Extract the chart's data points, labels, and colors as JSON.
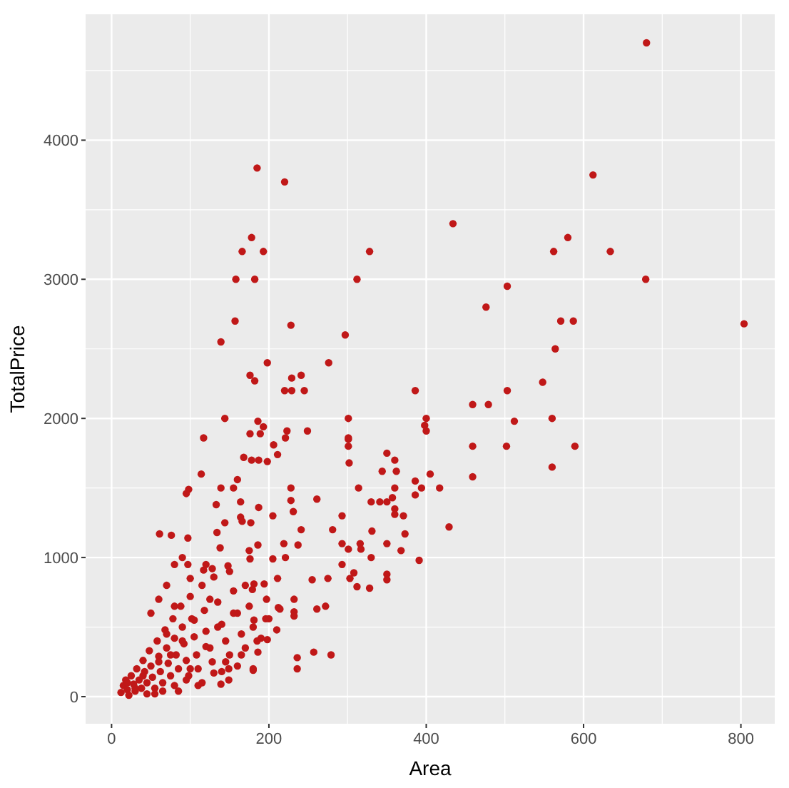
{
  "chart_data": {
    "type": "scatter",
    "xlabel": "Area",
    "ylabel": "TotalPrice",
    "xlim": [
      -33,
      843
    ],
    "ylim": [
      -195,
      4905
    ],
    "xticks": [
      0,
      200,
      400,
      600,
      800
    ],
    "yticks": [
      0,
      1000,
      2000,
      3000,
      4000
    ],
    "grid": true,
    "marker": "circle",
    "series": [
      {
        "color": "#c01818",
        "x": [
          680,
          185,
          220,
          612,
          434,
          178,
          166,
          193,
          328,
          562,
          580,
          634,
          158,
          182,
          312,
          679,
          503,
          476,
          157,
          228,
          571,
          587,
          804,
          297,
          139,
          564,
          198,
          276,
          176,
          182,
          229,
          241,
          220,
          229,
          245,
          386,
          548,
          503,
          459,
          479,
          144,
          301,
          400,
          560,
          186,
          512,
          193,
          398,
          400,
          176,
          189,
          223,
          249,
          117,
          221,
          301,
          301,
          301,
          459,
          502,
          589,
          302,
          350,
          360,
          344,
          362,
          560,
          459,
          405,
          314,
          360,
          394,
          417,
          386,
          386,
          330,
          341,
          350,
          357,
          360,
          360,
          371,
          429,
          293,
          331,
          373,
          293,
          316,
          317,
          301,
          350,
          368,
          330,
          391,
          293,
          308,
          303,
          350,
          350,
          312,
          328,
          206,
          168,
          178,
          187,
          198,
          211,
          228,
          114,
          98,
          95,
          139,
          155,
          160,
          133,
          164,
          164,
          166,
          187,
          205,
          177,
          144,
          61,
          97,
          76,
          134,
          138,
          175,
          186,
          205,
          221,
          237,
          211,
          176,
          80,
          97,
          117,
          128,
          148,
          194,
          212,
          181,
          179,
          232,
          232,
          232,
          214,
          197,
          181,
          198,
          186,
          196,
          236,
          236,
          257,
          279,
          255,
          272,
          275,
          261,
          180,
          149,
          139,
          149,
          281,
          231,
          228,
          261,
          241,
          219,
          12,
          15,
          18,
          20,
          22,
          25,
          28,
          30,
          32,
          35,
          38,
          40,
          42,
          45,
          48,
          50,
          52,
          55,
          58,
          60,
          62,
          65,
          68,
          70,
          72,
          75,
          78,
          80,
          82,
          85,
          88,
          90,
          92,
          95,
          98,
          100,
          102,
          105,
          108,
          110,
          115,
          118,
          120,
          125,
          128,
          130,
          135,
          140,
          145,
          150,
          155,
          160,
          165,
          170,
          175,
          180,
          190,
          200,
          210,
          150,
          120,
          70,
          60,
          50,
          90,
          55,
          85,
          110,
          140,
          160,
          20,
          30,
          40,
          45,
          60,
          65,
          75,
          80,
          90,
          95,
          100,
          105,
          115,
          120,
          130,
          135,
          145,
          155,
          165,
          170,
          180,
          185,
          125,
          100,
          80,
          70
        ],
        "values": [
          4700,
          3800,
          3700,
          3750,
          3400,
          3300,
          3200,
          3200,
          3200,
          3200,
          3300,
          3200,
          3000,
          3000,
          3000,
          3000,
          2950,
          2800,
          2700,
          2670,
          2700,
          2700,
          2680,
          2600,
          2550,
          2500,
          2400,
          2400,
          2310,
          2270,
          2290,
          2310,
          2200,
          2200,
          2200,
          2200,
          2260,
          2200,
          2100,
          2100,
          2000,
          2000,
          2000,
          2000,
          1980,
          1980,
          1940,
          1950,
          1910,
          1890,
          1890,
          1910,
          1910,
          1860,
          1860,
          1860,
          1850,
          1800,
          1800,
          1800,
          1800,
          1680,
          1750,
          1700,
          1620,
          1620,
          1650,
          1580,
          1600,
          1500,
          1500,
          1500,
          1500,
          1550,
          1450,
          1400,
          1400,
          1400,
          1430,
          1350,
          1310,
          1300,
          1220,
          1300,
          1190,
          1170,
          1100,
          1100,
          1060,
          1060,
          1100,
          1050,
          1000,
          980,
          950,
          890,
          850,
          880,
          840,
          790,
          780,
          1810,
          1720,
          1700,
          1700,
          1690,
          1740,
          1500,
          1600,
          1490,
          1460,
          1500,
          1500,
          1560,
          1380,
          1400,
          1290,
          1260,
          1360,
          1300,
          1250,
          1250,
          1170,
          1140,
          1160,
          1180,
          1070,
          1050,
          1090,
          990,
          1000,
          1090,
          850,
          990,
          950,
          950,
          910,
          920,
          940,
          810,
          640,
          810,
          770,
          700,
          610,
          580,
          630,
          700,
          550,
          410,
          320,
          560,
          280,
          200,
          320,
          300,
          840,
          650,
          850,
          630,
          190,
          200,
          90,
          120,
          1200,
          1330,
          1410,
          1420,
          1200,
          1100,
          30,
          80,
          120,
          50,
          10,
          150,
          90,
          40,
          200,
          120,
          60,
          260,
          180,
          100,
          330,
          220,
          140,
          60,
          400,
          290,
          180,
          100,
          480,
          350,
          240,
          150,
          560,
          420,
          300,
          200,
          650,
          500,
          380,
          260,
          150,
          720,
          560,
          430,
          300,
          200,
          800,
          620,
          470,
          350,
          250,
          860,
          680,
          520,
          400,
          300,
          760,
          600,
          450,
          350,
          650,
          500,
          420,
          560,
          480,
          900,
          950,
          800,
          700,
          600,
          1000,
          20,
          40,
          80,
          180,
          220,
          100,
          60,
          150,
          20,
          250,
          40,
          300,
          80,
          400,
          120,
          200,
          550,
          100,
          360,
          170,
          500,
          250,
          600,
          300,
          800,
          200,
          400,
          700,
          850,
          650,
          450
        ]
      }
    ]
  }
}
